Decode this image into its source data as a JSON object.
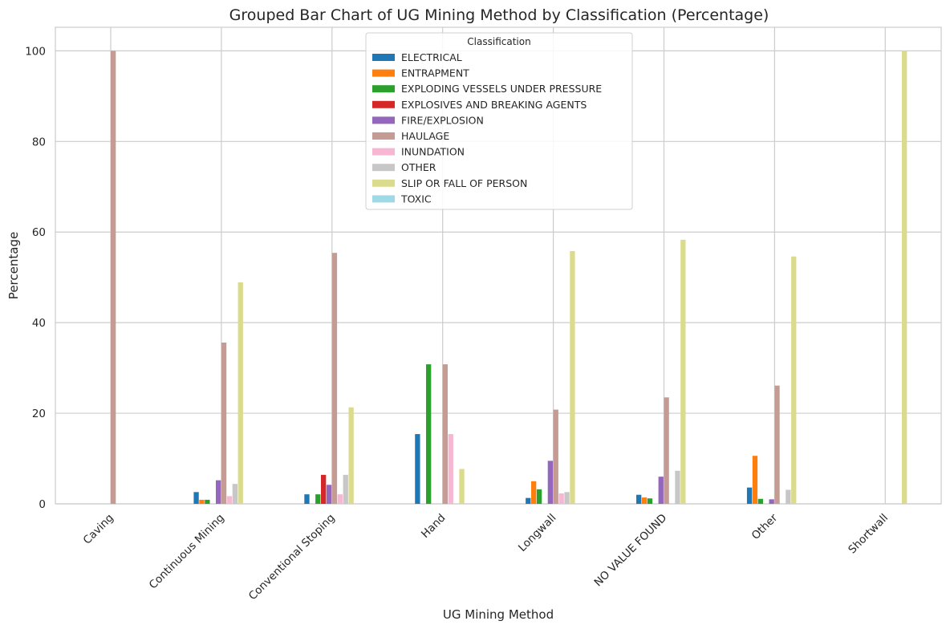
{
  "chart_data": {
    "type": "bar",
    "title": "Grouped Bar Chart of UG Mining Method by Classification (Percentage)",
    "xlabel": "UG Mining Method",
    "ylabel": "Percentage",
    "ylim": [
      0,
      105.2
    ],
    "yticks": [
      0,
      20,
      40,
      60,
      80,
      100
    ],
    "grid": true,
    "legend_title": "Classification",
    "legend_position": "top-center",
    "categories": [
      "Caving",
      "Continuous Mining",
      "Conventional Stoping",
      "Hand",
      "Longwall",
      "NO VALUE FOUND",
      "Other",
      "Shortwall"
    ],
    "series": [
      {
        "name": "ELECTRICAL",
        "color": "#1f77b4",
        "values": [
          0,
          2.6,
          2.1,
          15.4,
          1.3,
          2.0,
          3.6,
          0
        ]
      },
      {
        "name": "ENTRAPMENT",
        "color": "#ff7f0e",
        "values": [
          0,
          0.9,
          0,
          0,
          5.0,
          1.4,
          10.6,
          0
        ]
      },
      {
        "name": "EXPLODING VESSELS UNDER PRESSURE",
        "color": "#2ca02c",
        "values": [
          0,
          0.9,
          2.1,
          30.8,
          3.2,
          1.2,
          1.1,
          0
        ]
      },
      {
        "name": "EXPLOSIVES AND BREAKING AGENTS",
        "color": "#d62728",
        "values": [
          0,
          0,
          6.4,
          0,
          0,
          0,
          0,
          0
        ]
      },
      {
        "name": "FIRE/EXPLOSION",
        "color": "#9467bd",
        "values": [
          0,
          5.2,
          4.2,
          0,
          9.5,
          6.0,
          1.0,
          0
        ]
      },
      {
        "name": "HAULAGE",
        "color": "#c49c94",
        "values": [
          100,
          35.6,
          55.4,
          30.8,
          20.8,
          23.5,
          26.1,
          0
        ]
      },
      {
        "name": "INUNDATION",
        "color": "#f7b6d2",
        "values": [
          0,
          1.7,
          2.1,
          15.4,
          2.3,
          0,
          0,
          0
        ]
      },
      {
        "name": "OTHER",
        "color": "#c7c7c7",
        "values": [
          0,
          4.4,
          6.4,
          0,
          2.6,
          7.3,
          3.1,
          0
        ]
      },
      {
        "name": "SLIP OR FALL OF PERSON",
        "color": "#dbdb8d",
        "values": [
          0,
          48.9,
          21.3,
          7.7,
          55.8,
          58.3,
          54.6,
          100
        ]
      },
      {
        "name": "TOXIC",
        "color": "#9edae5",
        "values": [
          0,
          0,
          0,
          0,
          0,
          0,
          0,
          0
        ]
      }
    ]
  }
}
